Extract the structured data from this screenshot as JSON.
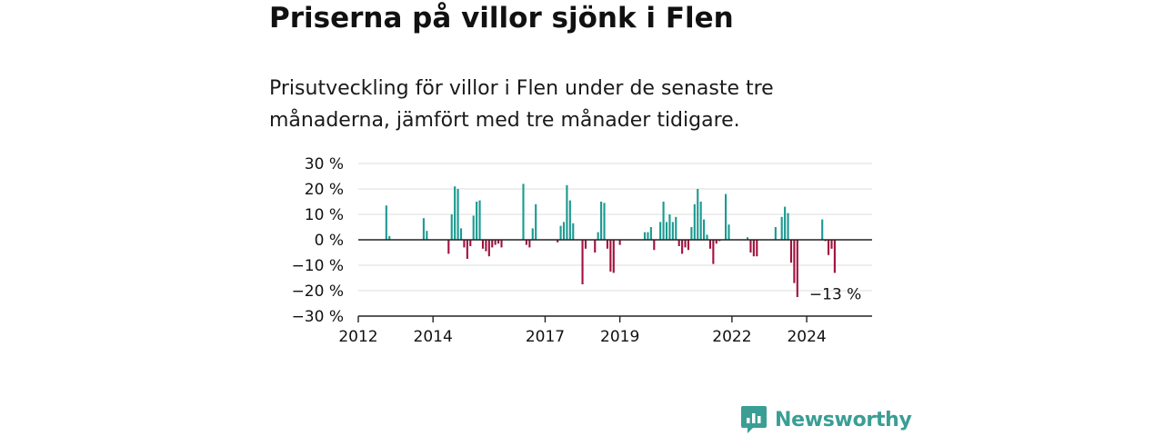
{
  "header": {
    "title": "Priserna på villor sjönk i Flen",
    "subtitle": "Prisutveckling för villor i Flen under de senaste tre månaderna, jämfört med tre månader tidigare."
  },
  "colors": {
    "positive": "#1c9a91",
    "negative": "#a3123f",
    "grid": "#dddddd",
    "axis": "#222222",
    "brand": "#3a9e95"
  },
  "brand": {
    "name": "Newsworthy",
    "logo_icon": "bar-chart-speech-bubble-icon"
  },
  "chart_data": {
    "type": "bar",
    "title": "Priserna på villor sjönk i Flen",
    "subtitle": "Prisutveckling för villor i Flen under de senaste tre månaderna, jämfört med tre månader tidigare.",
    "unit": "%",
    "ylim": [
      -30,
      30
    ],
    "yticks": [
      30,
      20,
      10,
      0,
      -10,
      -20,
      -30
    ],
    "ytick_labels": [
      "30 %",
      "20 %",
      "10 %",
      "0 %",
      "−10 %",
      "−20 %",
      "−30 %"
    ],
    "xlim": [
      "2012-01",
      "2025-10"
    ],
    "xticks": [
      "2012-01",
      "2014-01",
      "2017-01",
      "2019-01",
      "2022-01",
      "2024-01"
    ],
    "xtick_labels": [
      "2012",
      "2014",
      "2017",
      "2019",
      "2022",
      "2024"
    ],
    "grid": true,
    "end_label": "−13 %",
    "x": [
      "2012-10",
      "2012-11",
      "2013-10",
      "2013-11",
      "2014-06",
      "2014-07",
      "2014-08",
      "2014-09",
      "2014-10",
      "2014-11",
      "2014-12",
      "2015-01",
      "2015-02",
      "2015-03",
      "2015-04",
      "2015-05",
      "2015-06",
      "2015-07",
      "2015-08",
      "2015-09",
      "2015-10",
      "2015-11",
      "2016-06",
      "2016-07",
      "2016-08",
      "2016-09",
      "2016-10",
      "2017-05",
      "2017-06",
      "2017-07",
      "2017-08",
      "2017-09",
      "2017-10",
      "2018-01",
      "2018-02",
      "2018-05",
      "2018-06",
      "2018-07",
      "2018-08",
      "2018-09",
      "2018-10",
      "2018-11",
      "2019-01",
      "2019-09",
      "2019-10",
      "2019-11",
      "2019-12",
      "2020-02",
      "2020-03",
      "2020-04",
      "2020-05",
      "2020-06",
      "2020-07",
      "2020-08",
      "2020-09",
      "2020-10",
      "2020-11",
      "2020-12",
      "2021-01",
      "2021-02",
      "2021-03",
      "2021-04",
      "2021-05",
      "2021-06",
      "2021-07",
      "2021-08",
      "2021-09",
      "2021-11",
      "2021-12",
      "2022-06",
      "2022-07",
      "2022-08",
      "2022-09",
      "2023-03",
      "2023-05",
      "2023-06",
      "2023-07",
      "2023-08",
      "2023-09",
      "2023-10",
      "2024-06",
      "2024-07",
      "2024-08",
      "2024-09",
      "2024-10"
    ],
    "values": [
      13.5,
      1.5,
      8.5,
      3.5,
      -5.5,
      10,
      21,
      20,
      4.5,
      -3,
      -7.5,
      -2.5,
      9.5,
      15,
      15.5,
      -3.5,
      -4.5,
      -6.5,
      -3,
      -2,
      -1.5,
      -3,
      22,
      -2,
      -3,
      4.5,
      14,
      -1,
      5.5,
      7,
      21.5,
      15.5,
      6.5,
      -17.5,
      -3.5,
      -5,
      3,
      15,
      14.5,
      -3.5,
      -12.5,
      -13,
      -2,
      3,
      3,
      5,
      -4,
      7,
      15,
      7,
      10,
      7,
      9,
      -2.5,
      -5.5,
      -3,
      -4,
      5,
      14,
      20,
      15,
      8,
      2,
      -3.5,
      -9.5,
      -1.5,
      -0.5,
      18,
      6,
      1,
      -5,
      -6.5,
      -6.5,
      5,
      9,
      13,
      10.5,
      -9,
      -17,
      -22.5,
      8,
      -0.5,
      -6,
      -3.5,
      -13
    ]
  }
}
